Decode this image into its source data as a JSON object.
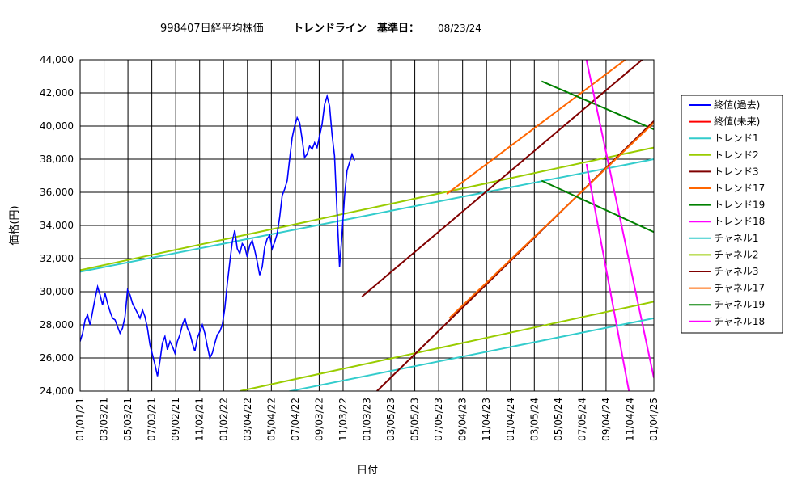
{
  "chart_data": {
    "type": "line",
    "title": "998407日経平均株価",
    "subtitle": "トレンドライン　基準日：",
    "base_date": "08/23/24",
    "xlabel": "日付",
    "ylabel": "価格(円)",
    "ylim": [
      24000,
      44000
    ],
    "yticks": [
      24000,
      26000,
      28000,
      30000,
      32000,
      34000,
      36000,
      38000,
      40000,
      42000,
      44000
    ],
    "ytick_labels": [
      "24,000",
      "26,000",
      "28,000",
      "30,000",
      "32,000",
      "34,000",
      "36,000",
      "38,000",
      "40,000",
      "42,000",
      "44,000"
    ],
    "xtick_labels": [
      "01/01/21",
      "03/03/21",
      "05/03/21",
      "07/03/21",
      "09/02/21",
      "11/02/21",
      "01/02/22",
      "03/04/22",
      "05/04/22",
      "07/04/22",
      "09/03/22",
      "11/03/22",
      "01/03/23",
      "03/05/23",
      "05/05/23",
      "07/05/23",
      "09/04/23",
      "11/04/23",
      "01/04/24",
      "03/05/24",
      "05/05/24",
      "07/05/24",
      "09/04/24",
      "11/04/24",
      "01/04/25"
    ],
    "grid": true,
    "legend_position": "right",
    "series": [
      {
        "name": "終値(過去)",
        "color": "#0000ff",
        "style": "price",
        "points": [
          [
            0,
            27000
          ],
          [
            1,
            27500
          ],
          [
            2,
            28300
          ],
          [
            3,
            28600
          ],
          [
            4,
            28000
          ],
          [
            5,
            28800
          ],
          [
            6,
            29600
          ],
          [
            7,
            30300
          ],
          [
            8,
            29800
          ],
          [
            9,
            29200
          ],
          [
            10,
            29900
          ],
          [
            11,
            29300
          ],
          [
            12,
            28800
          ],
          [
            13,
            28400
          ],
          [
            14,
            28300
          ],
          [
            15,
            27900
          ],
          [
            16,
            27500
          ],
          [
            17,
            27800
          ],
          [
            18,
            28500
          ],
          [
            19,
            30100
          ],
          [
            20,
            29800
          ],
          [
            21,
            29300
          ],
          [
            22,
            29000
          ],
          [
            23,
            28700
          ],
          [
            24,
            28400
          ],
          [
            25,
            28900
          ],
          [
            26,
            28500
          ],
          [
            27,
            27800
          ],
          [
            28,
            26800
          ],
          [
            29,
            26200
          ],
          [
            30,
            25600
          ],
          [
            31,
            24900
          ],
          [
            32,
            25800
          ],
          [
            33,
            26900
          ],
          [
            34,
            27300
          ],
          [
            35,
            26500
          ],
          [
            36,
            27000
          ],
          [
            37,
            26700
          ],
          [
            38,
            26300
          ],
          [
            39,
            27000
          ],
          [
            40,
            27400
          ],
          [
            41,
            28000
          ],
          [
            42,
            28400
          ],
          [
            43,
            27800
          ],
          [
            44,
            27500
          ],
          [
            45,
            26900
          ],
          [
            46,
            26400
          ],
          [
            47,
            27200
          ],
          [
            48,
            27600
          ],
          [
            49,
            28000
          ],
          [
            50,
            27500
          ],
          [
            51,
            26700
          ],
          [
            52,
            26000
          ],
          [
            53,
            26300
          ],
          [
            54,
            26900
          ],
          [
            55,
            27400
          ],
          [
            56,
            27600
          ],
          [
            57,
            28000
          ],
          [
            58,
            29000
          ],
          [
            59,
            30500
          ],
          [
            60,
            31800
          ],
          [
            61,
            33000
          ],
          [
            62,
            33700
          ],
          [
            63,
            32600
          ],
          [
            64,
            32300
          ],
          [
            65,
            32900
          ],
          [
            66,
            32700
          ],
          [
            67,
            32100
          ],
          [
            68,
            32800
          ],
          [
            69,
            33100
          ],
          [
            70,
            32500
          ],
          [
            71,
            31800
          ],
          [
            72,
            31000
          ],
          [
            73,
            31500
          ],
          [
            74,
            32700
          ],
          [
            75,
            33200
          ],
          [
            76,
            33400
          ],
          [
            77,
            32600
          ],
          [
            78,
            33000
          ],
          [
            79,
            33500
          ],
          [
            80,
            34500
          ],
          [
            81,
            35800
          ],
          [
            82,
            36200
          ],
          [
            83,
            36700
          ],
          [
            84,
            38000
          ],
          [
            85,
            39300
          ],
          [
            86,
            40000
          ],
          [
            87,
            40500
          ],
          [
            88,
            40200
          ],
          [
            89,
            39200
          ],
          [
            90,
            38100
          ],
          [
            91,
            38300
          ],
          [
            92,
            38800
          ],
          [
            93,
            38600
          ],
          [
            94,
            39000
          ],
          [
            95,
            38700
          ],
          [
            96,
            39400
          ],
          [
            97,
            40100
          ],
          [
            98,
            41300
          ],
          [
            99,
            41800
          ],
          [
            100,
            41200
          ],
          [
            101,
            39500
          ],
          [
            102,
            38200
          ],
          [
            103,
            34800
          ],
          [
            104,
            31500
          ],
          [
            105,
            33500
          ],
          [
            106,
            35800
          ],
          [
            107,
            37300
          ],
          [
            108,
            37800
          ],
          [
            109,
            38300
          ],
          [
            110,
            37900
          ]
        ]
      },
      {
        "name": "終値(未来)",
        "color": "#ff0000",
        "style": "none",
        "points": []
      },
      {
        "name": "トレンド1",
        "color": "#33cccc",
        "points": [
          [
            0,
            31200
          ],
          [
            230,
            38000
          ]
        ]
      },
      {
        "name": "トレンド2",
        "color": "#99cc00",
        "points": [
          [
            0,
            31300
          ],
          [
            230,
            38700
          ]
        ]
      },
      {
        "name": "トレンド3",
        "color": "#800000",
        "points": [
          [
            113,
            29700
          ],
          [
            230,
            44600
          ]
        ]
      },
      {
        "name": "トレンド17",
        "color": "#ff6600",
        "points": [
          [
            147,
            35900
          ],
          [
            230,
            45300
          ]
        ]
      },
      {
        "name": "トレンド19",
        "color": "#008000",
        "points": [
          [
            185,
            42700
          ],
          [
            230,
            39800
          ]
        ]
      },
      {
        "name": "トレンド18",
        "color": "#ff00ff",
        "points": [
          [
            202,
            44700
          ],
          [
            230,
            24800
          ]
        ]
      },
      {
        "name": "チャネル1",
        "color": "#33cccc",
        "points": [
          [
            81,
            23900
          ],
          [
            230,
            28400
          ]
        ]
      },
      {
        "name": "チャネル2",
        "color": "#99cc00",
        "points": [
          [
            64,
            24000
          ],
          [
            230,
            29400
          ]
        ]
      },
      {
        "name": "チャネル3",
        "color": "#800000",
        "points": [
          [
            119,
            24000
          ],
          [
            230,
            40300
          ]
        ]
      },
      {
        "name": "チャネル17",
        "color": "#ff6600",
        "points": [
          [
            148,
            28400
          ],
          [
            230,
            40200
          ]
        ]
      },
      {
        "name": "チャネル19",
        "color": "#008000",
        "points": [
          [
            185,
            36700
          ],
          [
            230,
            33600
          ]
        ]
      },
      {
        "name": "チャネル18",
        "color": "#ff00ff",
        "points": [
          [
            203,
            37700
          ],
          [
            220,
            24000
          ]
        ]
      }
    ]
  }
}
